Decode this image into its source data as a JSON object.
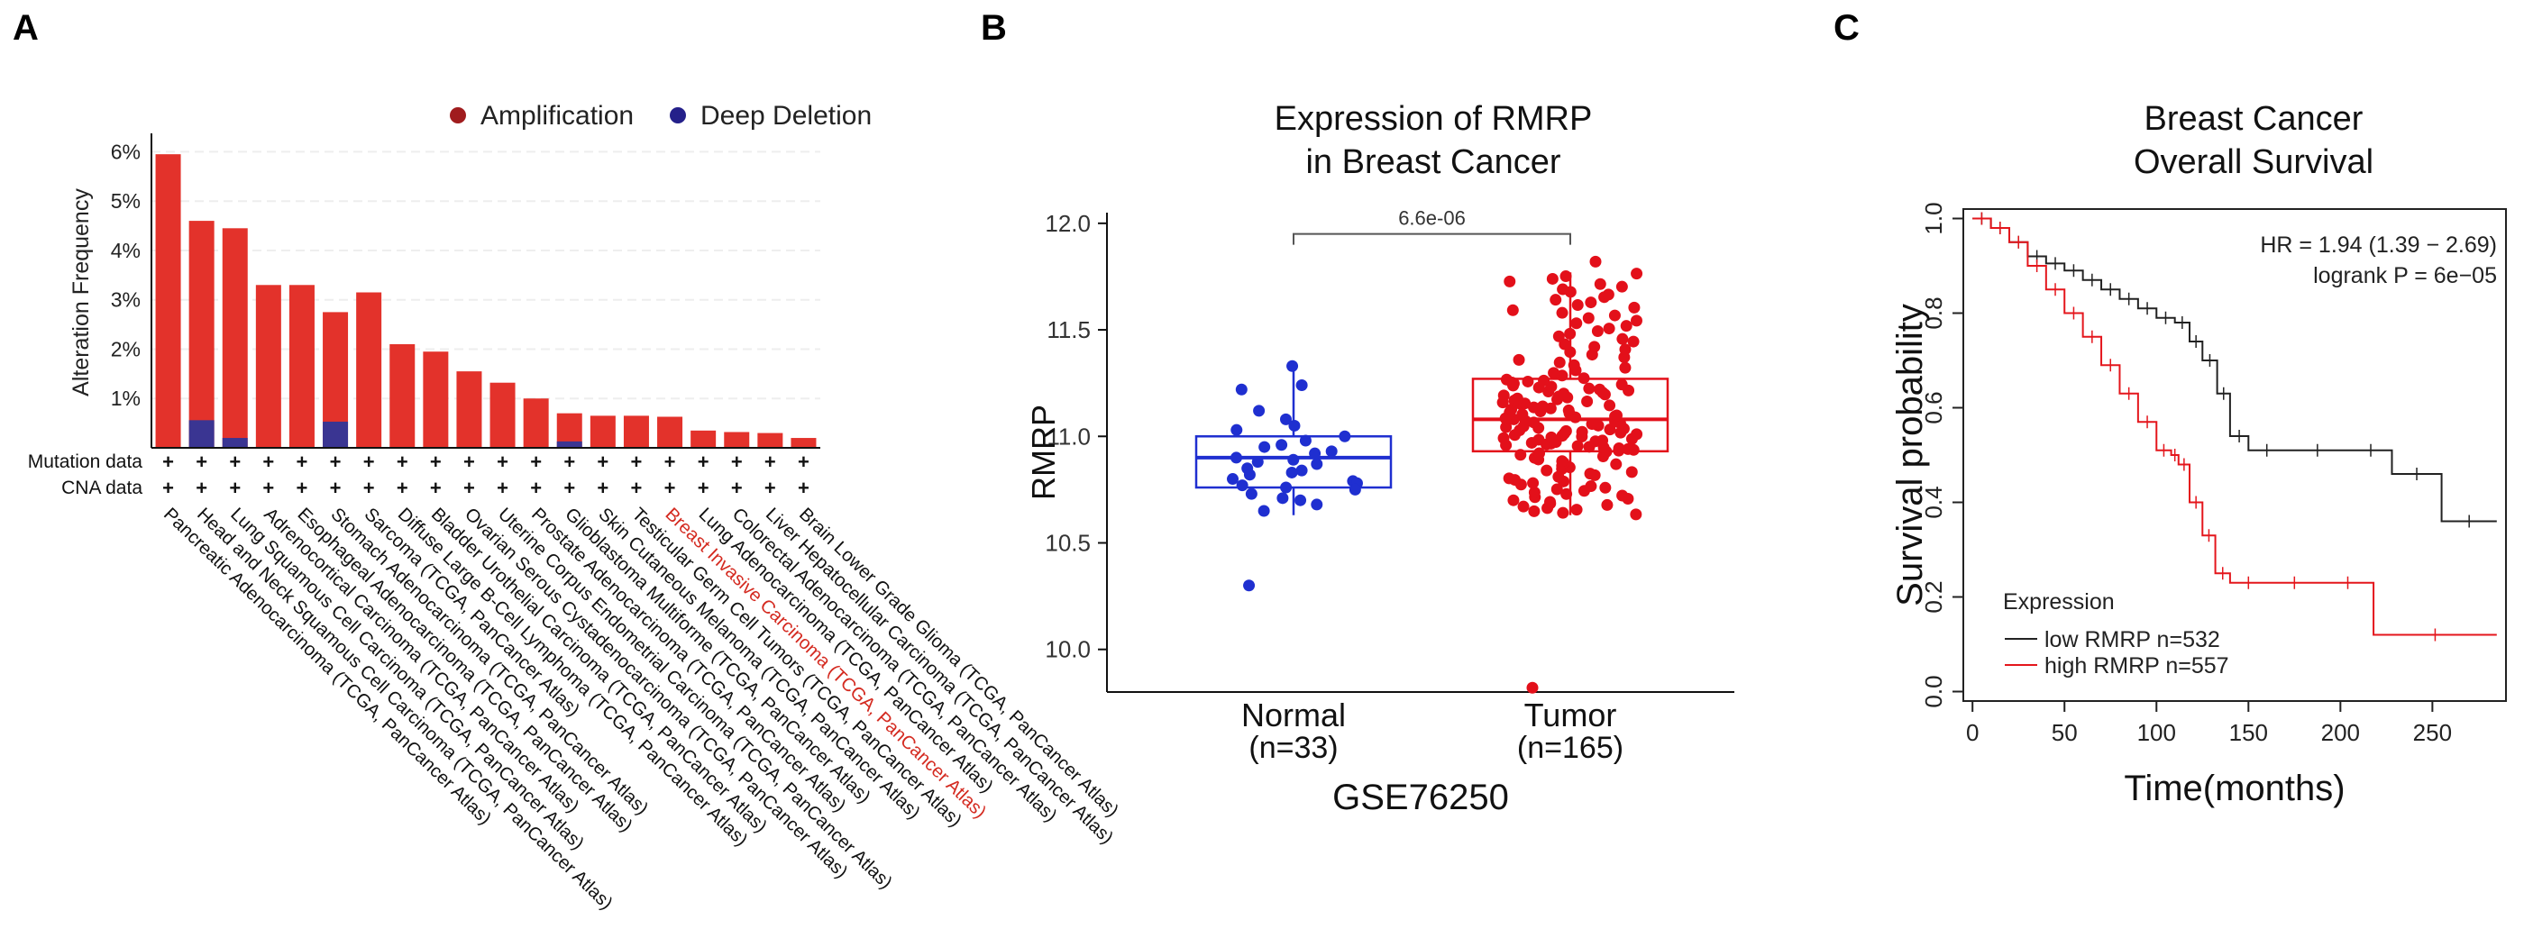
{
  "panels": {
    "a": "A",
    "b": "B",
    "c": "C"
  },
  "chart_data": [
    {
      "type": "bar",
      "panel": "A",
      "title": "",
      "ylabel": "Alteration Frequency",
      "ylim": [
        0,
        6.3
      ],
      "yticks": [
        1,
        2,
        3,
        4,
        5,
        6
      ],
      "ytick_labels": [
        "1%",
        "2%",
        "3%",
        "4%",
        "5%",
        "6%"
      ],
      "grid": true,
      "legend": [
        {
          "label": "Amplification",
          "color": "#e3322b"
        },
        {
          "label": "Deep Deletion",
          "color": "#3a3592"
        }
      ],
      "row_labels": [
        "Mutation data",
        "CNA data"
      ],
      "row_marker": "+",
      "highlight_color": "#d42a20",
      "categories": [
        "Pancreatic Adenocarcinoma (TCGA, PanCancer Atlas)",
        "Head and Neck Squamous Cell Carcinoma (TCGA, PanCancer Atlas)",
        "Lung Squamous Cell Carcinoma (TCGA, PanCancer Atlas)",
        "Adrenocortical Carcinoma (TCGA, PanCancer Atlas)",
        "Esophageal Adenocarcinoma (TCGA, PanCancer Atlas)",
        "Stomach Adenocarcinoma (TCGA, PanCancer Atlas)",
        "Sarcoma (TCGA, PanCancer Atlas)",
        "Diffuse Large B-Cell Lymphoma (TCGA, PanCancer Atlas)",
        "Bladder Urothelial Carcinoma (TCGA, PanCancer Atlas)",
        "Ovarian Serous Cystadenocarcinoma (TCGA, PanCancer Atlas)",
        "Uterine Corpus Endometrial Carcinoma (TCGA, PanCancer Atlas)",
        "Prostate Adenocarcinoma (TCGA, PanCancer Atlas)",
        "Glioblastoma Multiforme (TCGA, PanCancer Atlas)",
        "Skin Cutaneous Melanoma (TCGA, PanCancer Atlas)",
        "Testicular Germ Cell Tumors (TCGA, PanCancer Atlas)",
        "Breast Invasive Carcinoma (TCGA, PanCancer Atlas)",
        "Lung Adenocarcinoma (TCGA, PanCancer Atlas)",
        "Colorectal Adenocarcinoma (TCGA, PanCancer Atlas)",
        "Liver Hepatocellular Carcinoma (TCGA, PanCancer Atlas)",
        "Brain Lower Grade Glioma (TCGA, PanCancer Atlas)"
      ],
      "highlight_index": 15,
      "series": [
        {
          "name": "Amplification",
          "values": [
            5.95,
            4.6,
            4.45,
            3.3,
            3.3,
            2.75,
            3.15,
            2.1,
            1.95,
            1.55,
            1.32,
            1.0,
            0.7,
            0.65,
            0.65,
            0.63,
            0.35,
            0.32,
            0.3,
            0.2
          ]
        },
        {
          "name": "Deep Deletion",
          "values": [
            0,
            0.56,
            0.2,
            0,
            0,
            0.53,
            0,
            0,
            0,
            0,
            0,
            0,
            0.13,
            0,
            0,
            0,
            0,
            0,
            0,
            0
          ]
        }
      ]
    },
    {
      "type": "box",
      "panel": "B",
      "title": [
        "Expression of RMRP",
        "in Breast Cancer"
      ],
      "ylabel": "RMRP",
      "xlabel": "GSE76250",
      "ylim": [
        9.8,
        12.05
      ],
      "yticks": [
        10.0,
        10.5,
        11.0,
        11.5,
        12.0
      ],
      "ytick_labels": [
        "10.0",
        "10.5",
        "11.0",
        "11.5",
        "12.0"
      ],
      "pvalue": "6.6e-06",
      "groups": [
        {
          "name": "Normal",
          "n_label": "(n=33)",
          "color": "#1f2fd0",
          "whisker_low": 10.63,
          "q1": 10.76,
          "median": 10.9,
          "q3": 11.0,
          "whisker_high": 11.35,
          "outliers": [
            10.3
          ],
          "points": [
            11.33,
            11.24,
            11.22,
            11.12,
            11.08,
            11.05,
            11.03,
            11.0,
            10.98,
            10.96,
            10.95,
            10.93,
            10.92,
            10.9,
            10.89,
            10.88,
            10.87,
            10.85,
            10.84,
            10.83,
            10.82,
            10.8,
            10.79,
            10.78,
            10.77,
            10.76,
            10.75,
            10.73,
            10.71,
            10.7,
            10.68,
            10.65,
            10.3
          ]
        },
        {
          "name": "Tumor",
          "n_label": "(n=165)",
          "color": "#e3101a",
          "whisker_low": 10.63,
          "q1": 10.93,
          "median": 11.08,
          "q3": 11.27,
          "whisker_high": 11.77,
          "outliers": [
            11.82,
            9.82
          ]
        }
      ]
    },
    {
      "type": "survival",
      "panel": "C",
      "title": [
        "Breast Cancer",
        "Overall Survival"
      ],
      "ylabel": "Survival  probability",
      "xlabel": "Time(months)",
      "xlim": [
        -5,
        290
      ],
      "ylim": [
        -0.02,
        1.02
      ],
      "xticks": [
        0,
        50,
        100,
        150,
        200,
        250
      ],
      "yticks": [
        0.0,
        0.2,
        0.4,
        0.6,
        0.8,
        1.0
      ],
      "ytick_labels": [
        "0.0",
        "0.2",
        "0.4",
        "0.6",
        "0.8",
        "1.0"
      ],
      "hr_text": "HR = 1.94 (1.39 − 2.69)",
      "logrank_text": "logrank P = 6e−05",
      "legend_title": "Expression",
      "series": [
        {
          "name": "low RMRP n=532",
          "color": "#222222",
          "x": [
            0,
            10,
            20,
            30,
            40,
            50,
            60,
            70,
            80,
            90,
            100,
            110,
            118,
            125,
            133,
            140,
            150,
            170,
            205,
            228,
            255,
            285
          ],
          "y": [
            1.0,
            0.98,
            0.95,
            0.92,
            0.905,
            0.89,
            0.87,
            0.85,
            0.83,
            0.81,
            0.79,
            0.78,
            0.74,
            0.7,
            0.63,
            0.54,
            0.51,
            0.51,
            0.51,
            0.46,
            0.36,
            0.36
          ]
        },
        {
          "name": "high RMRP n=557",
          "color": "#e4161c",
          "x": [
            0,
            10,
            20,
            30,
            40,
            50,
            60,
            70,
            80,
            90,
            100,
            108,
            112,
            118,
            125,
            132,
            140,
            160,
            190,
            218,
            285
          ],
          "y": [
            1.0,
            0.98,
            0.95,
            0.9,
            0.85,
            0.8,
            0.75,
            0.69,
            0.63,
            0.57,
            0.51,
            0.5,
            0.48,
            0.4,
            0.33,
            0.25,
            0.23,
            0.23,
            0.23,
            0.12,
            0.12
          ]
        }
      ]
    }
  ]
}
